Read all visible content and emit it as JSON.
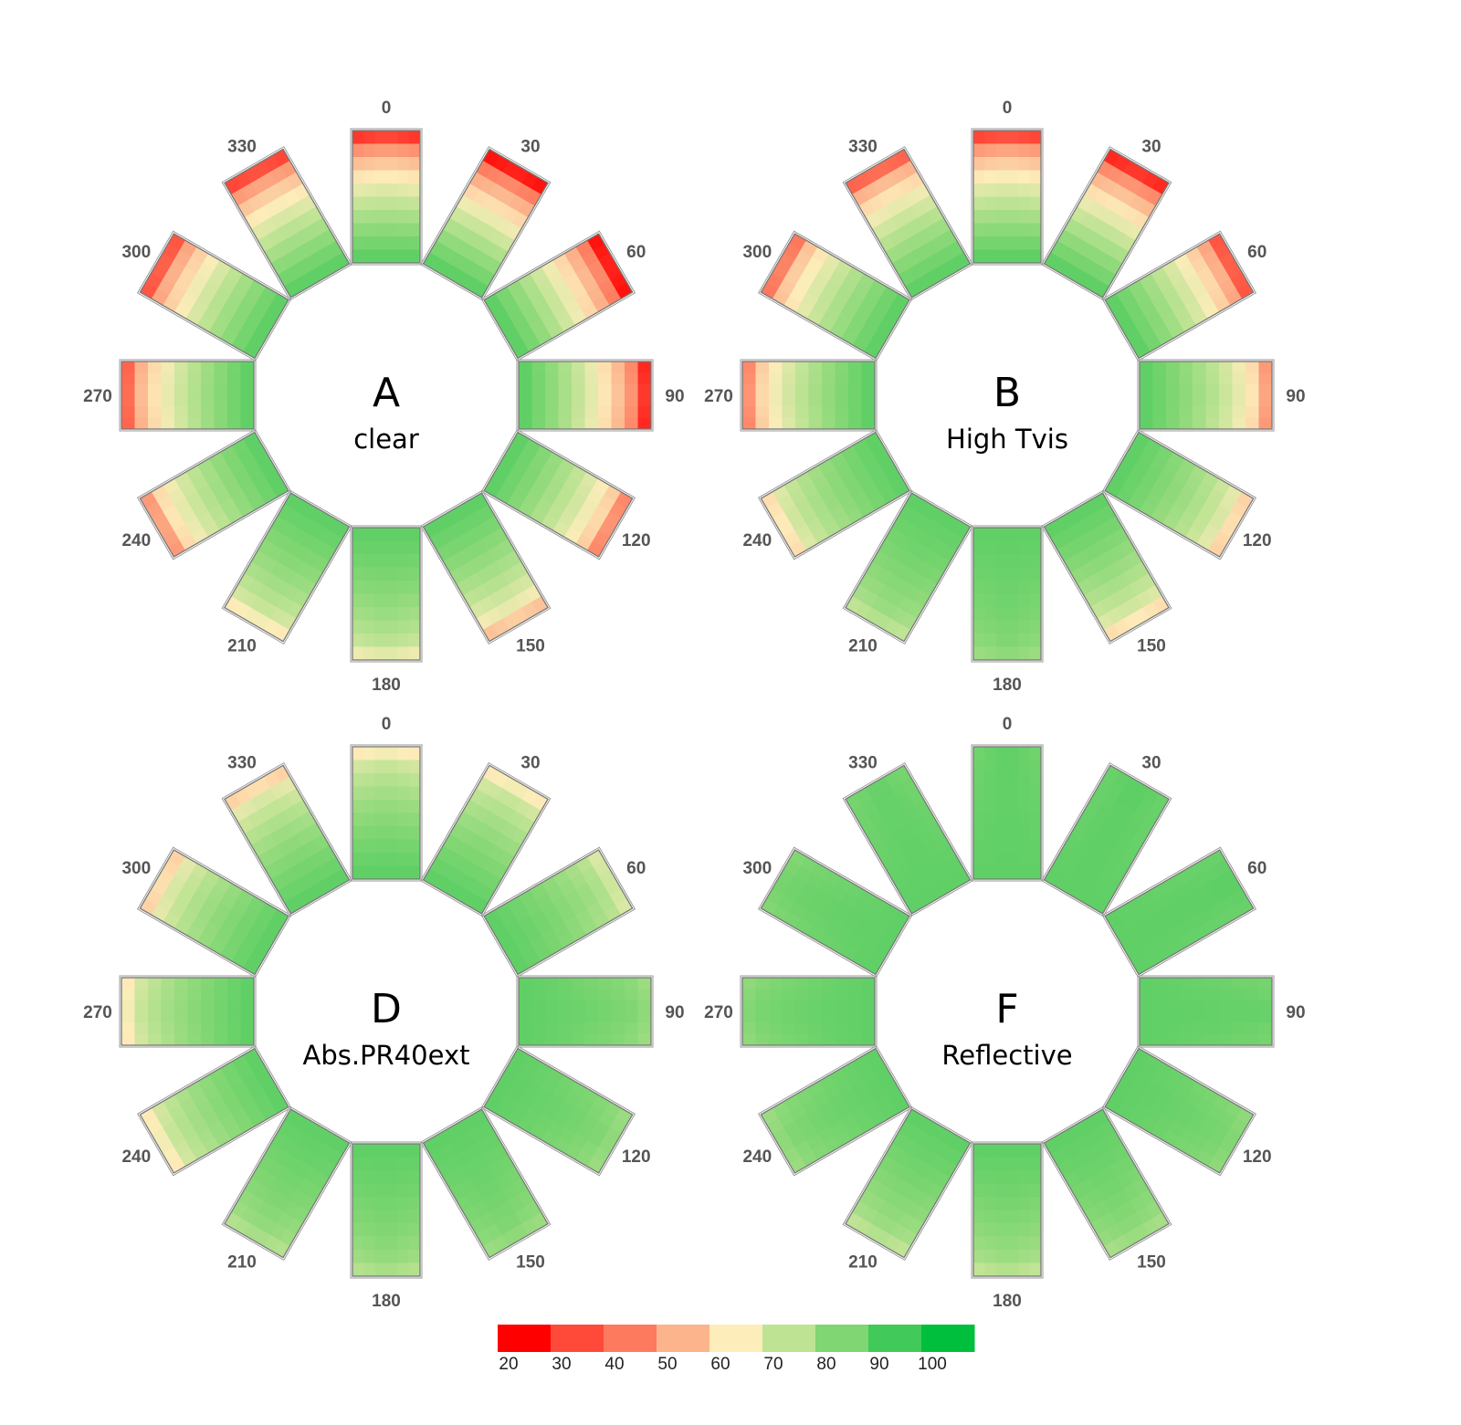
{
  "chart_data": {
    "type": "heatmap",
    "orientations": [
      0,
      30,
      60,
      90,
      120,
      150,
      180,
      210,
      240,
      270,
      300,
      330
    ],
    "panels": [
      {
        "label": "A",
        "name": "clear",
        "min_values": [
          30,
          25,
          25,
          28,
          45,
          55,
          65,
          62,
          48,
          38,
          35,
          32
        ]
      },
      {
        "label": "B",
        "name": "High Tvis",
        "min_values": [
          32,
          28,
          35,
          48,
          58,
          60,
          78,
          72,
          60,
          45,
          42,
          38
        ]
      },
      {
        "label": "D",
        "name": "Abs.PR40ext",
        "min_values": [
          62,
          62,
          68,
          78,
          78,
          78,
          74,
          74,
          62,
          62,
          58,
          58
        ]
      },
      {
        "label": "F",
        "name": "Reflective",
        "min_values": [
          85,
          86,
          86,
          84,
          80,
          76,
          72,
          72,
          78,
          80,
          82,
          84
        ]
      }
    ],
    "colorbar": {
      "ticks": [
        20,
        30,
        40,
        50,
        60,
        70,
        80,
        90,
        100
      ],
      "colors": [
        "#ff0000",
        "#ff4a3a",
        "#fd7a5e",
        "#fcb48d",
        "#fdedba",
        "#bde393",
        "#7fd672",
        "#41c95a",
        "#00bf3d"
      ]
    }
  }
}
